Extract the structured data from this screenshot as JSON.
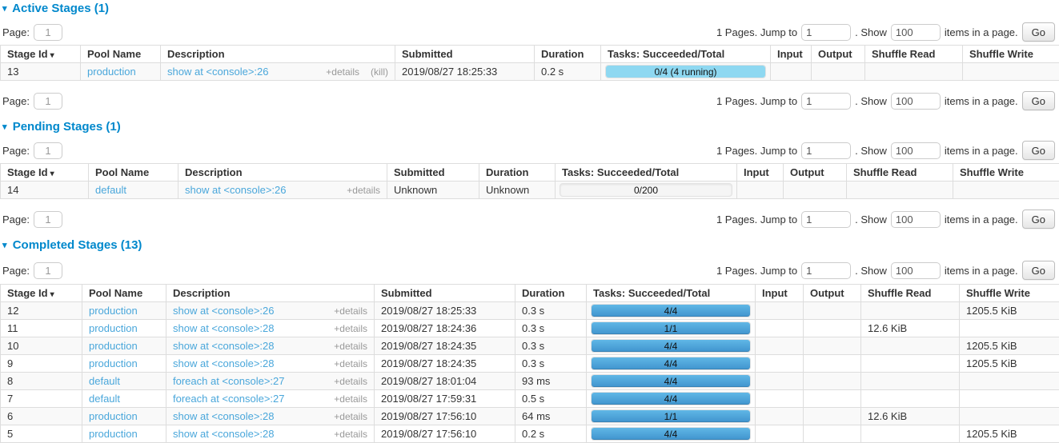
{
  "colors": {
    "heading_blue": "#0088cc",
    "link_blue": "#4aa7db",
    "bar_done_top": "#60b7e6",
    "bar_done_bottom": "#4094ce",
    "bar_running": "#8ed8f1",
    "row_stripe": "#f9f9f9",
    "table_border": "#dddddd"
  },
  "icons": {
    "collapse_caret": "▾",
    "sort_arrow": "▾"
  },
  "pagination": {
    "page_label": "Page:",
    "page_value": "1",
    "pages_info": "1 Pages. Jump to",
    "jump_value": "1",
    "show_label": ". Show",
    "show_value": "100",
    "items_label": "items in a page.",
    "go_label": "Go"
  },
  "table_headers": [
    "Stage Id",
    "Pool Name",
    "Description",
    "Submitted",
    "Duration",
    "Tasks: Succeeded/Total",
    "Input",
    "Output",
    "Shuffle Read",
    "Shuffle Write"
  ],
  "sections": [
    {
      "title": "Active Stages (1)",
      "rows": [
        {
          "stage_id": "13",
          "pool": "production",
          "description": "show at <console>:26",
          "details": "+details",
          "kill": "(kill)",
          "submitted": "2019/08/27 18:25:33",
          "duration": "0.2 s",
          "tasks": "0/4 (4 running)",
          "bar": {
            "done": 0,
            "running": 100
          },
          "input": "",
          "output": "",
          "shuffle_read": "",
          "shuffle_write": ""
        }
      ]
    },
    {
      "title": "Pending Stages (1)",
      "rows": [
        {
          "stage_id": "14",
          "pool": "default",
          "description": "show at <console>:26",
          "details": "+details",
          "kill": "",
          "submitted": "Unknown",
          "duration": "Unknown",
          "tasks": "0/200",
          "bar": {
            "done": 0,
            "running": 0
          },
          "input": "",
          "output": "",
          "shuffle_read": "",
          "shuffle_write": ""
        }
      ]
    },
    {
      "title": "Completed Stages (13)",
      "rows": [
        {
          "stage_id": "12",
          "pool": "production",
          "description": "show at <console>:26",
          "details": "+details",
          "kill": "",
          "submitted": "2019/08/27 18:25:33",
          "duration": "0.3 s",
          "tasks": "4/4",
          "bar": {
            "done": 100,
            "running": 0
          },
          "input": "",
          "output": "",
          "shuffle_read": "",
          "shuffle_write": "1205.5 KiB"
        },
        {
          "stage_id": "11",
          "pool": "production",
          "description": "show at <console>:28",
          "details": "+details",
          "kill": "",
          "submitted": "2019/08/27 18:24:36",
          "duration": "0.3 s",
          "tasks": "1/1",
          "bar": {
            "done": 100,
            "running": 0
          },
          "input": "",
          "output": "",
          "shuffle_read": "12.6 KiB",
          "shuffle_write": ""
        },
        {
          "stage_id": "10",
          "pool": "production",
          "description": "show at <console>:28",
          "details": "+details",
          "kill": "",
          "submitted": "2019/08/27 18:24:35",
          "duration": "0.3 s",
          "tasks": "4/4",
          "bar": {
            "done": 100,
            "running": 0
          },
          "input": "",
          "output": "",
          "shuffle_read": "",
          "shuffle_write": "1205.5 KiB"
        },
        {
          "stage_id": "9",
          "pool": "production",
          "description": "show at <console>:28",
          "details": "+details",
          "kill": "",
          "submitted": "2019/08/27 18:24:35",
          "duration": "0.3 s",
          "tasks": "4/4",
          "bar": {
            "done": 100,
            "running": 0
          },
          "input": "",
          "output": "",
          "shuffle_read": "",
          "shuffle_write": "1205.5 KiB"
        },
        {
          "stage_id": "8",
          "pool": "default",
          "description": "foreach at <console>:27",
          "details": "+details",
          "kill": "",
          "submitted": "2019/08/27 18:01:04",
          "duration": "93 ms",
          "tasks": "4/4",
          "bar": {
            "done": 100,
            "running": 0
          },
          "input": "",
          "output": "",
          "shuffle_read": "",
          "shuffle_write": ""
        },
        {
          "stage_id": "7",
          "pool": "default",
          "description": "foreach at <console>:27",
          "details": "+details",
          "kill": "",
          "submitted": "2019/08/27 17:59:31",
          "duration": "0.5 s",
          "tasks": "4/4",
          "bar": {
            "done": 100,
            "running": 0
          },
          "input": "",
          "output": "",
          "shuffle_read": "",
          "shuffle_write": ""
        },
        {
          "stage_id": "6",
          "pool": "production",
          "description": "show at <console>:28",
          "details": "+details",
          "kill": "",
          "submitted": "2019/08/27 17:56:10",
          "duration": "64 ms",
          "tasks": "1/1",
          "bar": {
            "done": 100,
            "running": 0
          },
          "input": "",
          "output": "",
          "shuffle_read": "12.6 KiB",
          "shuffle_write": ""
        },
        {
          "stage_id": "5",
          "pool": "production",
          "description": "show at <console>:28",
          "details": "+details",
          "kill": "",
          "submitted": "2019/08/27 17:56:10",
          "duration": "0.2 s",
          "tasks": "4/4",
          "bar": {
            "done": 100,
            "running": 0
          },
          "input": "",
          "output": "",
          "shuffle_read": "",
          "shuffle_write": "1205.5 KiB"
        }
      ]
    }
  ]
}
